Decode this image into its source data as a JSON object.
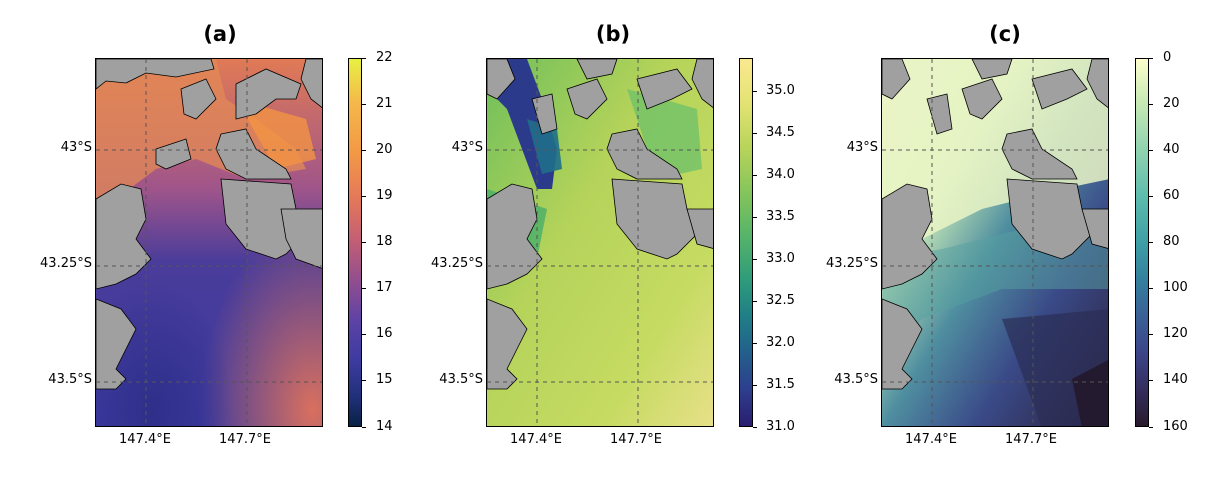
{
  "panels": [
    {
      "title": "(a)",
      "lat_labels": [
        "43°S",
        "43.25°S",
        "43.5°S"
      ],
      "lon_labels": [
        "147.4°E",
        "147.7°E"
      ],
      "colormap": "thermal",
      "colorbar_labels": [
        "22",
        "21",
        "20",
        "19",
        "18",
        "17",
        "16",
        "15",
        "14"
      ],
      "colorbar_range": [
        14,
        22
      ]
    },
    {
      "title": "(b)",
      "lat_labels": [
        "43°S",
        "43.25°S",
        "43.5°S"
      ],
      "lon_labels": [
        "147.4°E",
        "147.7°E"
      ],
      "colormap": "haline",
      "colorbar_labels": [
        "35.0",
        "34.5",
        "34.0",
        "33.5",
        "33.0",
        "32.5",
        "32.0",
        "31.5",
        "31.0"
      ],
      "colorbar_range": [
        31.0,
        35.4
      ]
    },
    {
      "title": "(c)",
      "lat_labels": [
        "43°S",
        "43.25°S",
        "43.5°S"
      ],
      "lon_labels": [
        "147.4°E",
        "147.7°E"
      ],
      "colormap": "deep",
      "colorbar_labels": [
        "0",
        "20",
        "40",
        "60",
        "80",
        "100",
        "120",
        "140",
        "160"
      ],
      "colorbar_range": [
        0,
        160
      ]
    }
  ],
  "colors": {
    "land": "#a0a0a0",
    "gridline": "#555555"
  }
}
